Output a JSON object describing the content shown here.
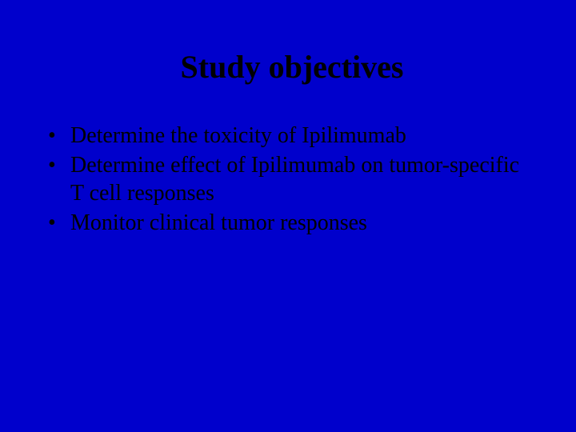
{
  "slide": {
    "title": "Study objectives",
    "bullets": [
      "Determine the toxicity of Ipilimumab",
      "Determine effect of Ipilimumab on tumor-specific T cell responses",
      "Monitor clinical tumor responses"
    ],
    "background_color": "#0000cc",
    "text_color": "#000000",
    "title_fontsize": 40,
    "body_fontsize": 28,
    "font_family": "Times New Roman"
  }
}
